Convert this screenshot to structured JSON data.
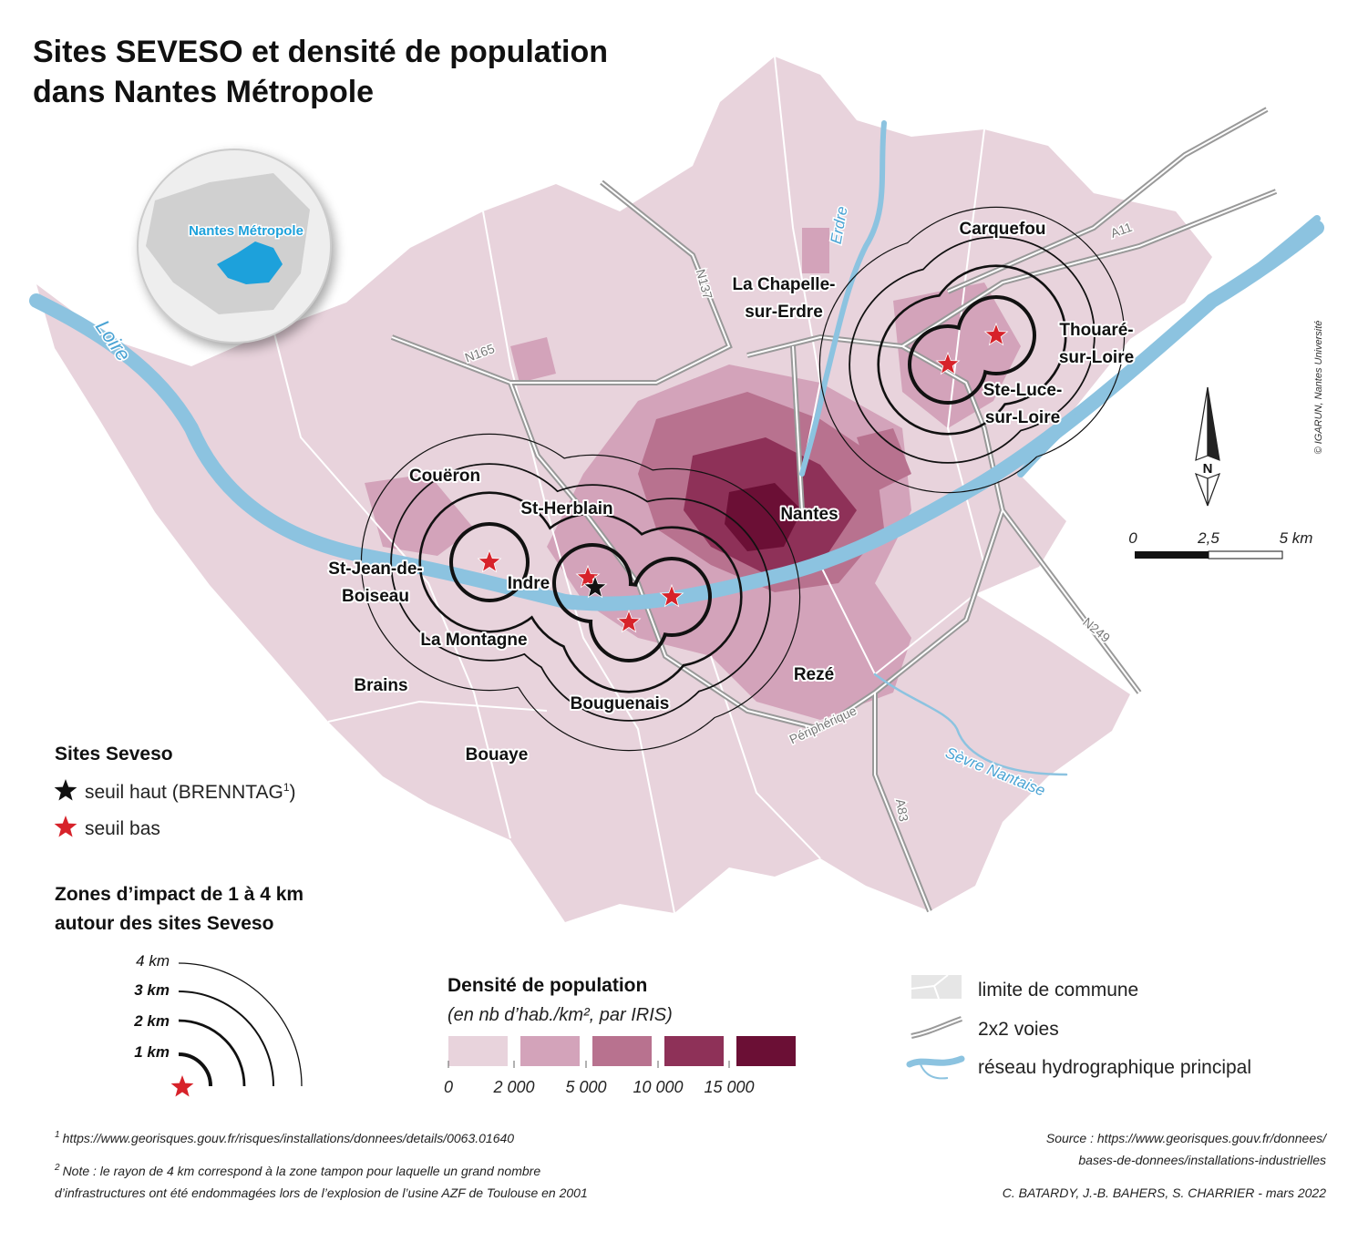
{
  "title": [
    "Sites SEVESO et densité de population",
    "dans Nantes Métropole"
  ],
  "inset_label": "Nantes Métropole",
  "communes": [
    [
      "Carquefou"
    ],
    [
      "La Chapelle-",
      "sur-Erdre"
    ],
    [
      "Thouaré-",
      "sur-Loire"
    ],
    [
      "Ste-Luce-",
      "sur-Loire"
    ],
    [
      "Nantes"
    ],
    [
      "Couëron"
    ],
    [
      "St-Herblain"
    ],
    [
      "St-Jean-de-",
      "Boiseau"
    ],
    [
      "Indre"
    ],
    [
      "La Montagne"
    ],
    [
      "Brains"
    ],
    [
      "Bouguenais"
    ],
    [
      "Rezé"
    ],
    [
      "Bouaye"
    ]
  ],
  "roads": [
    "N137",
    "N165",
    "A11",
    "N249",
    "A83",
    "Périphérique"
  ],
  "rivers": [
    "Loire",
    "Erdre",
    "Sèvre Nantaise"
  ],
  "compass": "N",
  "scale": [
    "0",
    "2,5",
    "5 km"
  ],
  "copyright": "© IGARUN, Nantes Université",
  "legend_seveso": {
    "title": "Sites Seveso",
    "high": {
      "text": "seuil haut (BRENNTAG",
      "note": "1",
      "close": ")"
    },
    "low": "seuil bas"
  },
  "legend_zones": {
    "title": [
      "Zones d’impact de 1 à 4 km",
      "autour des sites Seveso"
    ],
    "radii": [
      "4 km",
      "3 km",
      "2 km",
      "1 km"
    ]
  },
  "legend_density": {
    "title": "Densité de population",
    "subtitle": "(en nb d’hab./km², par IRIS)",
    "colors": [
      "#e8d3dc",
      "#d3a3ba",
      "#b8728f",
      "#8e3158",
      "#6b0f35"
    ],
    "breaks": [
      "0",
      "2 000",
      "5 000",
      "10 000",
      "15 000"
    ]
  },
  "legend_other": [
    "limite de commune",
    "2x2 voies",
    "réseau hydrographique principal"
  ],
  "footnotes": [
    {
      "mark": "1",
      "text": [
        "https://www.georisques.gouv.fr/risques/installations/donnees/details/0063.01640"
      ]
    },
    {
      "mark": "2",
      "text": [
        "Note : le rayon de 4 km correspond à la zone tampon pour laquelle un grand nombre",
        "d’infrastructures ont été endommagées lors de l’explosion de l’usine AZF de Toulouse en 2001"
      ]
    }
  ],
  "source": [
    "Source :  https://www.georisques.gouv.fr/donnees/",
    "bases-de-donnees/installations-industrielles"
  ],
  "credits": "C. BATARDY, J.-B. BAHERS, S. CHARRIER - mars 2022"
}
